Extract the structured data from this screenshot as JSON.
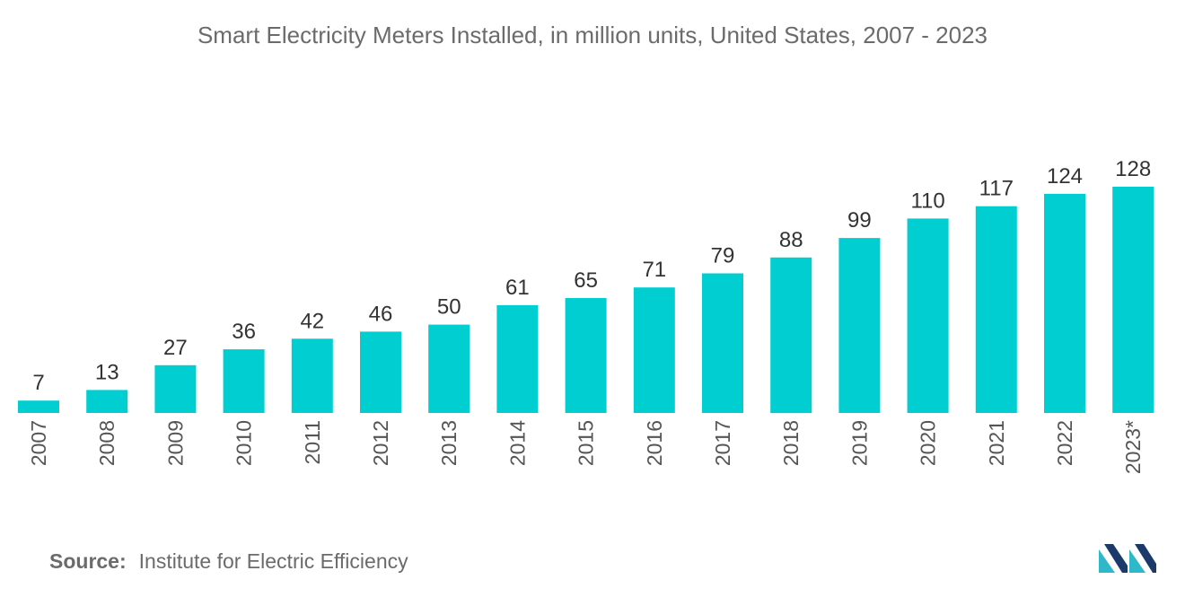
{
  "chart_data": {
    "type": "bar",
    "title": "Smart Electricity Meters Installed, in million units, United States, 2007 - 2023",
    "xlabel": "",
    "ylabel": "",
    "ylim": [
      0,
      128
    ],
    "grid": false,
    "categories": [
      "2007",
      "2008",
      "2009",
      "2010",
      "2011",
      "2012",
      "2013",
      "2014",
      "2015",
      "2016",
      "2017",
      "2018",
      "2019",
      "2020",
      "2021",
      "2022",
      "2023*"
    ],
    "values": [
      7,
      13,
      27,
      36,
      42,
      46,
      50,
      61,
      65,
      71,
      79,
      88,
      99,
      110,
      117,
      124,
      128
    ],
    "colors": {
      "bar": "#00ced1",
      "label": "#333333",
      "tick": "#555555"
    }
  },
  "source": {
    "label": "Source:",
    "text": "Institute for Electric Efficiency"
  },
  "logo": {
    "icon": "mordor-intelligence-logo-icon",
    "colors": [
      "#1b3a6b",
      "#2fb8c9"
    ]
  }
}
